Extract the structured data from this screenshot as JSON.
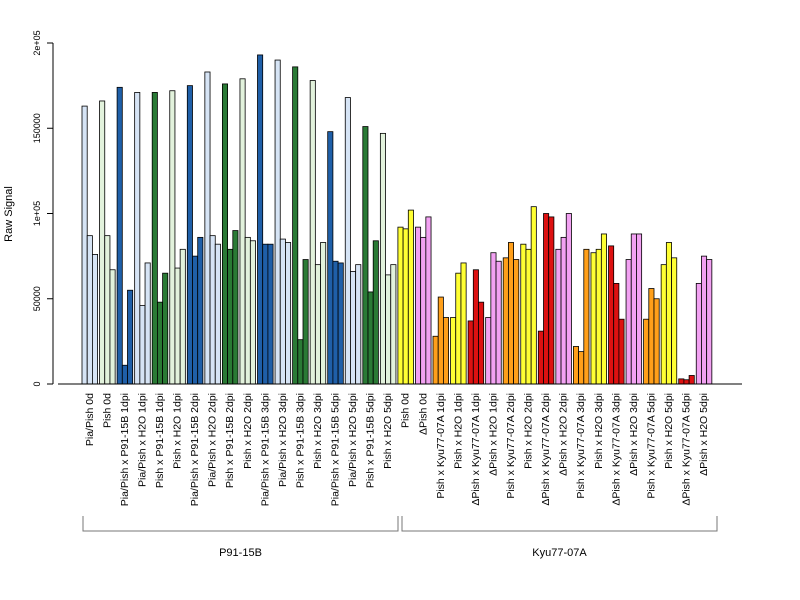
{
  "colors": {
    "pia_pish": "#d6e4f5",
    "pish_control": "#e2f2dc",
    "pia_pish_p91": "#1f5fa8",
    "pish_p91": "#2a7a35",
    "pish_kyu": "#ffff33",
    "dpish_kyu": "#f2a1f2",
    "pish_kyu_inf": "#ff9f1a",
    "dpish_kyu_inf": "#dd1111"
  },
  "chart_data": {
    "type": "bar",
    "ylabel": "Raw Signal",
    "ylim": [
      0,
      200000
    ],
    "yticks": [
      {
        "value": 0,
        "label": "0"
      },
      {
        "value": 50000,
        "label": "50000"
      },
      {
        "value": 100000,
        "label": "1e+05"
      },
      {
        "value": 150000,
        "label": "150000"
      },
      {
        "value": 200000,
        "label": "2e+05"
      }
    ],
    "groups": [
      {
        "label": "Pia/Pish 0d",
        "color": "pia_pish",
        "values": [
          163000,
          87000,
          76000
        ]
      },
      {
        "label": "Pish 0d",
        "color": "pish_control",
        "values": [
          166000,
          87000,
          67000
        ]
      },
      {
        "label": "Pia/Pish x P91-15B 1dpi",
        "color": "pia_pish_p91",
        "values": [
          174000,
          11000,
          55000
        ]
      },
      {
        "label": "Pia/Pish x H2O 1dpi",
        "color": "pia_pish",
        "values": [
          171000,
          46000,
          71000
        ]
      },
      {
        "label": "Pish x P91-15B 1dpi",
        "color": "pish_p91",
        "values": [
          171000,
          48000,
          65000
        ]
      },
      {
        "label": "Pish x H2O 1dpi",
        "color": "pish_control",
        "values": [
          172000,
          68000,
          79000
        ]
      },
      {
        "label": "Pia/Pish x P91-15B 2dpi",
        "color": "pia_pish_p91",
        "values": [
          175000,
          75000,
          86000
        ]
      },
      {
        "label": "Pia/Pish x H2O 2dpi",
        "color": "pia_pish",
        "values": [
          183000,
          87000,
          82000
        ]
      },
      {
        "label": "Pish x P91-15B 2dpi",
        "color": "pish_p91",
        "values": [
          176000,
          79000,
          90000
        ]
      },
      {
        "label": "Pish x H2O 2dpi",
        "color": "pish_control",
        "values": [
          179000,
          86000,
          84000
        ]
      },
      {
        "label": "Pia/Pish x P91-15B 3dpi",
        "color": "pia_pish_p91",
        "values": [
          193000,
          82000,
          82000
        ]
      },
      {
        "label": "Pia/Pish x H2O 3dpi",
        "color": "pia_pish",
        "values": [
          190000,
          85000,
          83000
        ]
      },
      {
        "label": "Pish x P91-15B 3dpi",
        "color": "pish_p91",
        "values": [
          186000,
          26000,
          73000
        ]
      },
      {
        "label": "Pish x H2O 3dpi",
        "color": "pish_control",
        "values": [
          178000,
          70000,
          83000
        ]
      },
      {
        "label": "Pia/Pish x P91-15B 5dpi",
        "color": "pia_pish_p91",
        "values": [
          148000,
          72000,
          71000
        ]
      },
      {
        "label": "Pia/Pish x H2O 5dpi",
        "color": "pia_pish",
        "values": [
          168000,
          66000,
          70000
        ]
      },
      {
        "label": "Pish x P91-15B 5dpi",
        "color": "pish_p91",
        "values": [
          151000,
          54000,
          84000
        ]
      },
      {
        "label": "Pish x H2O 5dpi",
        "color": "pish_control",
        "values": [
          147000,
          64000,
          70000
        ]
      },
      {
        "label": "Pish 0d",
        "color": "pish_kyu",
        "values": [
          92000,
          91000,
          102000
        ]
      },
      {
        "label": "ΔPish 0d",
        "color": "dpish_kyu",
        "values": [
          92000,
          86000,
          98000
        ]
      },
      {
        "label": "Pish x Kyu77-07A 1dpi",
        "color": "pish_kyu_inf",
        "values": [
          28000,
          51000,
          39000
        ]
      },
      {
        "label": "Pish x H2O 1dpi",
        "color": "pish_kyu",
        "values": [
          39000,
          65000,
          71000
        ]
      },
      {
        "label": "ΔPish x Kyu77-07A 1dpi",
        "color": "dpish_kyu_inf",
        "values": [
          37000,
          67000,
          48000
        ]
      },
      {
        "label": "ΔPish x H2O 1dpi",
        "color": "dpish_kyu",
        "values": [
          39000,
          77000,
          72000
        ]
      },
      {
        "label": "Pish x Kyu77-07A 2dpi",
        "color": "pish_kyu_inf",
        "values": [
          74000,
          83000,
          73000
        ]
      },
      {
        "label": "Pish x H2O 2dpi",
        "color": "pish_kyu",
        "values": [
          82000,
          79000,
          104000
        ]
      },
      {
        "label": "ΔPish x Kyu77-07A 2dpi",
        "color": "dpish_kyu_inf",
        "values": [
          31000,
          100000,
          98000
        ]
      },
      {
        "label": "ΔPish x H2O 2dpi",
        "color": "dpish_kyu",
        "values": [
          79000,
          86000,
          100000
        ]
      },
      {
        "label": "Pish x Kyu77-07A 3dpi",
        "color": "pish_kyu_inf",
        "values": [
          22000,
          19000,
          79000
        ]
      },
      {
        "label": "Pish x H2O 3dpi",
        "color": "pish_kyu",
        "values": [
          77000,
          79000,
          88000
        ]
      },
      {
        "label": "ΔPish x Kyu77-07A 3dpi",
        "color": "dpish_kyu_inf",
        "values": [
          81000,
          59000,
          38000
        ]
      },
      {
        "label": "ΔPish x H2O 3dpi",
        "color": "dpish_kyu",
        "values": [
          73000,
          88000,
          88000
        ]
      },
      {
        "label": "Pish x Kyu77-07A 5dpi",
        "color": "pish_kyu_inf",
        "values": [
          38000,
          56000,
          50000
        ]
      },
      {
        "label": "Pish x H2O 5dpi",
        "color": "pish_kyu",
        "values": [
          70000,
          83000,
          74000
        ]
      },
      {
        "label": "ΔPish x Kyu77-07A 5dpi",
        "color": "dpish_kyu_inf",
        "values": [
          3000,
          2500,
          5000
        ]
      },
      {
        "label": "ΔPish x H2O 5dpi",
        "color": "dpish_kyu",
        "values": [
          59000,
          75000,
          73000
        ]
      }
    ],
    "brackets": [
      {
        "label": "P91-15B",
        "from_group": 0,
        "to_group": 17
      },
      {
        "label": "Kyu77-07A",
        "from_group": 18,
        "to_group": 35
      }
    ]
  }
}
